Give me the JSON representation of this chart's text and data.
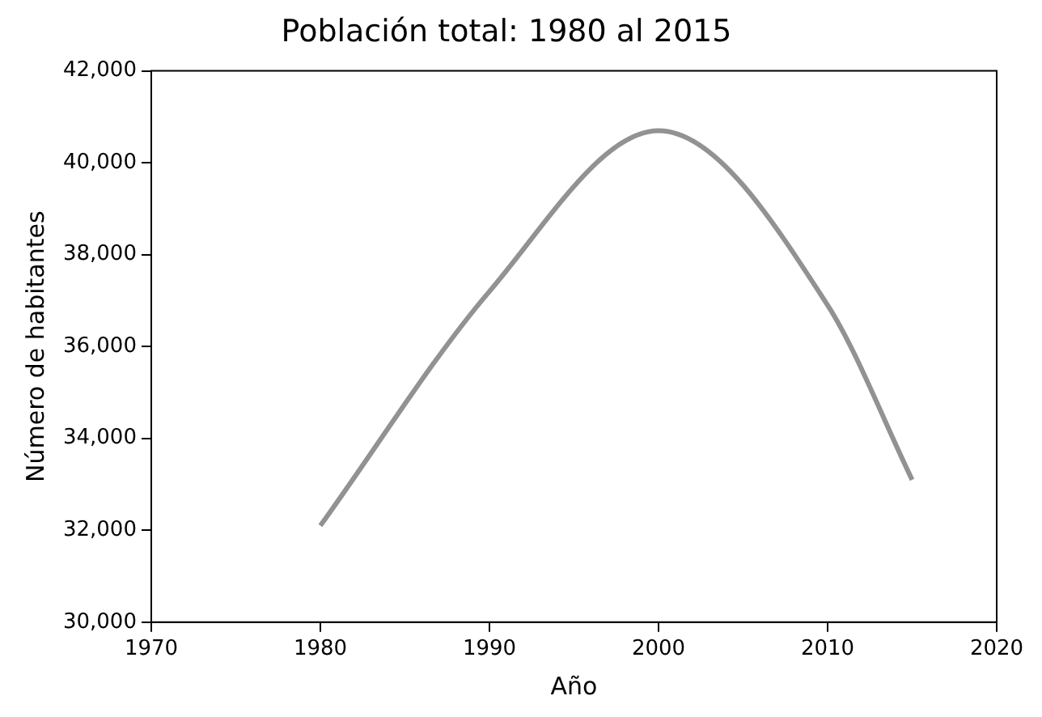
{
  "chart_data": {
    "type": "line",
    "title": "Población total: 1980 al 2015",
    "xlabel": "Año",
    "ylabel": "Número de habitantes",
    "x": [
      1980,
      1990,
      2000,
      2010,
      2015
    ],
    "series": [
      {
        "color": "#929292",
        "values": [
          32100,
          37200,
          40700,
          36900,
          33100
        ]
      }
    ],
    "xlim": [
      1970,
      2020
    ],
    "xticks": [
      1970,
      1980,
      1990,
      2000,
      2010,
      2020
    ],
    "ylim": [
      30000,
      42000
    ],
    "yticks": [
      {
        "value": 30000,
        "label": "30,000"
      },
      {
        "value": 32000,
        "label": "32,000"
      },
      {
        "value": 34000,
        "label": "34,000"
      },
      {
        "value": 36000,
        "label": "36,000"
      },
      {
        "value": 38000,
        "label": "38,000"
      },
      {
        "value": 40000,
        "label": "40,000"
      },
      {
        "value": 42000,
        "label": "42,000"
      }
    ],
    "grid": false,
    "legend": false,
    "marker": "none",
    "line_style": "solid"
  }
}
